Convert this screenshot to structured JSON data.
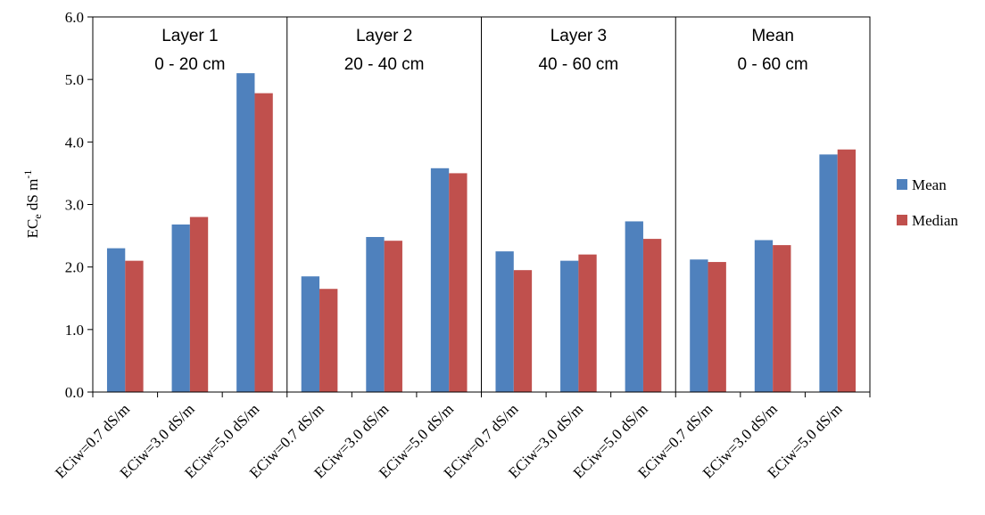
{
  "chart_data": {
    "type": "bar",
    "y_label": {
      "main": "EC",
      "sub": "e",
      "unit": " dS m",
      "sup": "-1"
    },
    "categories": [
      "ECiw=0.7 dS/m",
      "ECiw=3.0 dS/m",
      "ECiw=5.0 dS/m",
      "ECiw=0.7 dS/m",
      "ECiw=3.0 dS/m",
      "ECiw=5.0 dS/m",
      "ECiw=0.7 dS/m",
      "ECiw=3.0 dS/m",
      "ECiw=5.0 dS/m",
      "ECiw=0.7 dS/m",
      "ECiw=3.0 dS/m",
      "ECiw=5.0 dS/m"
    ],
    "series": [
      {
        "name": "Mean",
        "color": "#4f81bd",
        "values": [
          2.3,
          2.68,
          5.1,
          1.85,
          2.48,
          3.58,
          2.25,
          2.1,
          2.73,
          2.12,
          2.43,
          3.8
        ]
      },
      {
        "name": "Median",
        "color": "#c0504d",
        "values": [
          2.1,
          2.8,
          4.78,
          1.65,
          2.42,
          3.5,
          1.95,
          2.2,
          2.45,
          2.08,
          2.35,
          3.88
        ]
      }
    ],
    "panels": [
      {
        "title": "Layer 1",
        "subtitle": "0 - 20 cm"
      },
      {
        "title": "Layer 2",
        "subtitle": "20 - 40 cm"
      },
      {
        "title": "Layer 3",
        "subtitle": "40 - 60 cm"
      },
      {
        "title": "Mean",
        "subtitle": "0 - 60 cm"
      }
    ],
    "ylim": [
      0,
      6
    ],
    "yticks": [
      {
        "value": 0,
        "label": "0.0"
      },
      {
        "value": 1,
        "label": "1.0"
      },
      {
        "value": 2,
        "label": "2.0"
      },
      {
        "value": 3,
        "label": "3.0"
      },
      {
        "value": 4,
        "label": "4.0"
      },
      {
        "value": 5,
        "label": "5.0"
      },
      {
        "value": 6,
        "label": "6.0"
      }
    ],
    "legend": "right"
  }
}
